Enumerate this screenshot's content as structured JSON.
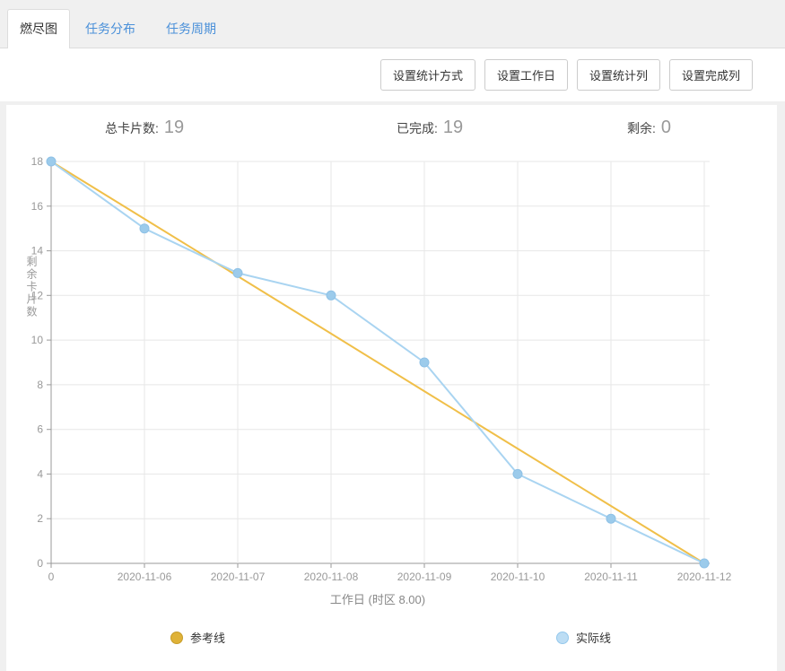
{
  "tabs": [
    {
      "label": "燃尽图",
      "active": true
    },
    {
      "label": "任务分布",
      "active": false
    },
    {
      "label": "任务周期",
      "active": false
    }
  ],
  "toolbar": {
    "buttons": [
      "设置统计方式",
      "设置工作日",
      "设置统计列",
      "设置完成列"
    ]
  },
  "stats": [
    {
      "label": "总卡片数:",
      "value": "19"
    },
    {
      "label": "已完成:",
      "value": "19"
    },
    {
      "label": "剩余:",
      "value": "0"
    }
  ],
  "chart_data": {
    "type": "line",
    "categories": [
      "0",
      "2020-11-06",
      "2020-11-07",
      "2020-11-08",
      "2020-11-09",
      "2020-11-10",
      "2020-11-11",
      "2020-11-12"
    ],
    "series": [
      {
        "name": "参考线",
        "values": [
          18,
          15.43,
          12.86,
          10.29,
          7.71,
          5.14,
          2.57,
          0
        ],
        "color": "#f0bf49",
        "markers": false
      },
      {
        "name": "实际线",
        "values": [
          18,
          15,
          13,
          12,
          9,
          4,
          2,
          0
        ],
        "color": "#a9d4f1",
        "markers": true,
        "marker_fill": "#9ccbeb",
        "marker_stroke": "#8ec1e6"
      }
    ],
    "xlabel": "工作日  (时区 8.00)",
    "ylabel": "剩余卡片数",
    "ylim": [
      0,
      18
    ],
    "ytick_step": 2,
    "grid": true,
    "legend_position": "bottom",
    "colors": {
      "grid": "#e7e7e7",
      "axis": "#999999",
      "tick_label": "#999999",
      "axis_title": "#888888"
    }
  },
  "legend": [
    {
      "fill": "#dfb238",
      "stroke": "#c79d2a"
    },
    {
      "fill": "#bcdDF4",
      "stroke": "#94c8ec"
    }
  ]
}
